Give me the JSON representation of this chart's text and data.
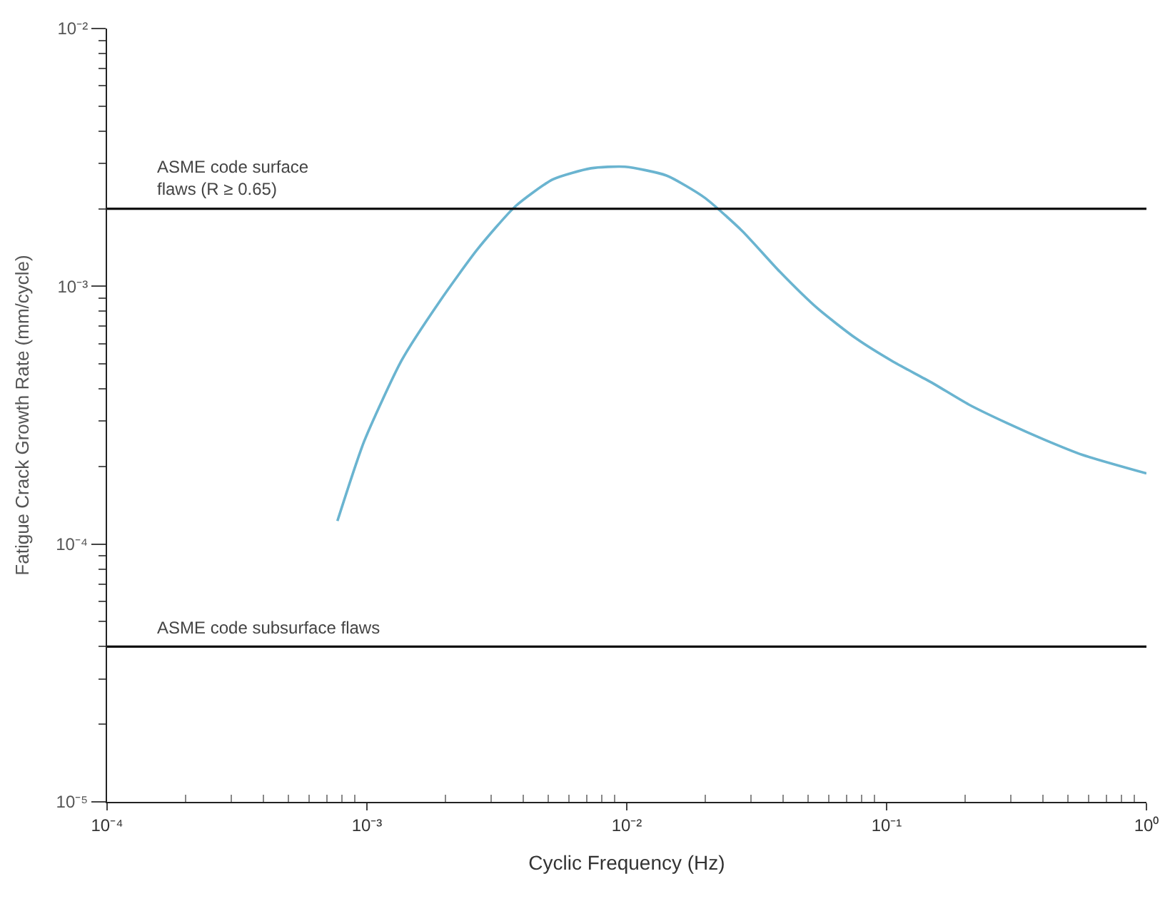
{
  "chart_data": {
    "type": "line",
    "xlabel": "Cyclic Frequency (Hz)",
    "ylabel": "Fatigue Crack Growth Rate (mm/cycle)",
    "log": "xy",
    "marker": "none",
    "line_style": "solid",
    "xlim": [
      0.0001,
      1
    ],
    "ylim": [
      1e-05,
      0.01
    ],
    "xticks": [
      {
        "value": 0.0001,
        "label": "10⁻⁴"
      },
      {
        "value": 0.001,
        "label": "10⁻³"
      },
      {
        "value": 0.01,
        "label": "10⁻²"
      },
      {
        "value": 0.1,
        "label": "10⁻¹"
      },
      {
        "value": 1,
        "label": "10⁰"
      }
    ],
    "yticks": [
      {
        "value": 1e-05,
        "label": "10⁻⁵"
      },
      {
        "value": 0.0001,
        "label": "10⁻⁴"
      },
      {
        "value": 0.001,
        "label": "10⁻³"
      },
      {
        "value": 0.01,
        "label": "10⁻²"
      }
    ],
    "series": [
      {
        "color": "#6ab4d0",
        "x": [
          0.00077,
          0.000975,
          0.00136,
          0.00191,
          0.00266,
          0.00372,
          0.0052,
          0.00728,
          0.00984,
          0.0142,
          0.0199,
          0.0278,
          0.0388,
          0.0543,
          0.0759,
          0.106,
          0.148,
          0.207,
          0.29,
          0.405,
          0.566,
          1
        ],
        "values": [
          0.000123,
          0.00025,
          0.000516,
          0.000877,
          0.00139,
          0.00204,
          0.0026,
          0.00287,
          0.00291,
          0.00269,
          0.00221,
          0.00164,
          0.00114,
          0.00082,
          0.00063,
          0.00051,
          0.000425,
          0.000348,
          0.000295,
          0.000254,
          0.000222,
          0.000188
        ]
      }
    ],
    "ref_lines": [
      {
        "axis": "y",
        "value": 0.002,
        "label": "ASME code surface\nflaws (R ≥ 0.65)",
        "color": "#111111"
      },
      {
        "axis": "y",
        "value": 4e-05,
        "label": "ASME code subsurface flaws",
        "color": "#111111"
      }
    ]
  }
}
